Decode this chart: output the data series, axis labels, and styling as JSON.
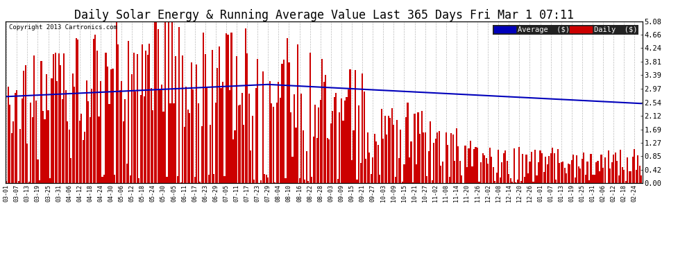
{
  "title": "Daily Solar Energy & Running Average Value Last 365 Days Fri Mar 1 07:11",
  "title_fontsize": 12,
  "copyright_text": "Copyright 2013 Cartronics.com",
  "legend_labels": [
    "Average  ($)",
    "Daily  ($)"
  ],
  "legend_colors": [
    "#0000bb",
    "#cc0000"
  ],
  "avg_color": "#0000bb",
  "bar_color": "#cc0000",
  "background_color": "#ffffff",
  "grid_color": "#aaaaaa",
  "ylabel_right_values": [
    5.08,
    4.66,
    4.24,
    3.81,
    3.39,
    2.97,
    2.54,
    2.12,
    1.69,
    1.27,
    0.85,
    0.42,
    0.0
  ],
  "ylim": [
    0.0,
    5.08
  ],
  "x_tick_labels": [
    "03-01",
    "03-07",
    "03-13",
    "03-19",
    "03-25",
    "03-31",
    "04-06",
    "04-12",
    "04-18",
    "04-24",
    "04-30",
    "05-06",
    "05-12",
    "05-18",
    "05-24",
    "05-30",
    "06-05",
    "06-11",
    "06-17",
    "06-23",
    "06-29",
    "07-05",
    "07-11",
    "07-17",
    "07-23",
    "07-29",
    "08-04",
    "08-10",
    "08-16",
    "08-22",
    "08-28",
    "09-03",
    "09-09",
    "09-15",
    "09-21",
    "09-27",
    "10-03",
    "10-09",
    "10-15",
    "10-21",
    "10-27",
    "11-02",
    "11-08",
    "11-14",
    "11-20",
    "11-26",
    "12-02",
    "12-08",
    "12-14",
    "12-20",
    "12-26",
    "01-01",
    "01-07",
    "01-13",
    "01-19",
    "01-25",
    "01-31",
    "02-06",
    "02-12",
    "02-18",
    "02-24"
  ],
  "avg_line_style": "-",
  "avg_linewidth": 1.5
}
